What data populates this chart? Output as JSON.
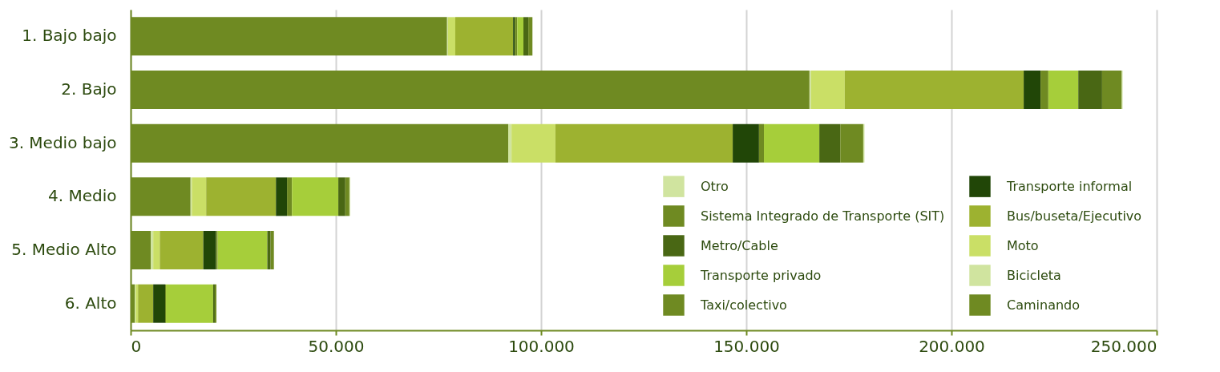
{
  "chart_data": {
    "type": "bar",
    "orientation": "horizontal",
    "stacked": true,
    "categories": [
      "1. Bajo bajo",
      "2. Bajo",
      "3. Medio bajo",
      "4. Medio",
      "5. Medio Alto",
      "6. Alto"
    ],
    "series": [
      {
        "name": "Caminando",
        "color": "#6f8a22",
        "values": [
          77100,
          165400,
          92000,
          14600,
          4900,
          1000
        ]
      },
      {
        "name": "Bicicleta",
        "color": "#d0e49f",
        "values": [
          200,
          400,
          800,
          300,
          600,
          200
        ]
      },
      {
        "name": "Moto",
        "color": "#cadf66",
        "values": [
          1800,
          8200,
          10700,
          3500,
          1600,
          600
        ]
      },
      {
        "name": "Bus/buseta/Ejecutivo",
        "color": "#9db230",
        "values": [
          14100,
          43600,
          43200,
          17000,
          10600,
          3700
        ]
      },
      {
        "name": "Transporte informal",
        "color": "#214607",
        "values": [
          400,
          4100,
          6400,
          2700,
          3100,
          2900
        ]
      },
      {
        "name": "Taxi/colectivo",
        "color": "#6f8a22",
        "values": [
          600,
          1900,
          1200,
          1200,
          400,
          200
        ]
      },
      {
        "name": "Transporte privado",
        "color": "#a6ce3a",
        "values": [
          1500,
          7300,
          13500,
          11300,
          12100,
          11500
        ]
      },
      {
        "name": "Metro/Cable",
        "color": "#496714",
        "values": [
          1200,
          5800,
          5100,
          1700,
          800,
          400
        ]
      },
      {
        "name": "Sistema Integrado de Transporte (SIT)",
        "color": "#6f8a22",
        "values": [
          1000,
          4800,
          5600,
          1000,
          800,
          400
        ]
      },
      {
        "name": "Otro",
        "color": "#d0e49f",
        "values": [
          0,
          200,
          300,
          200,
          0,
          0
        ]
      }
    ],
    "xlim": [
      0,
      250000
    ],
    "xticks": [
      0,
      {
        "value": 50000,
        "label": "50.000"
      },
      {
        "value": 100000,
        "label": "100.000"
      },
      {
        "value": 150000,
        "label": "150.000"
      },
      {
        "value": 200000,
        "label": "200.000"
      },
      {
        "value": 250000,
        "label": "250.000"
      }
    ],
    "grid": "x",
    "legend": "bottom right"
  }
}
